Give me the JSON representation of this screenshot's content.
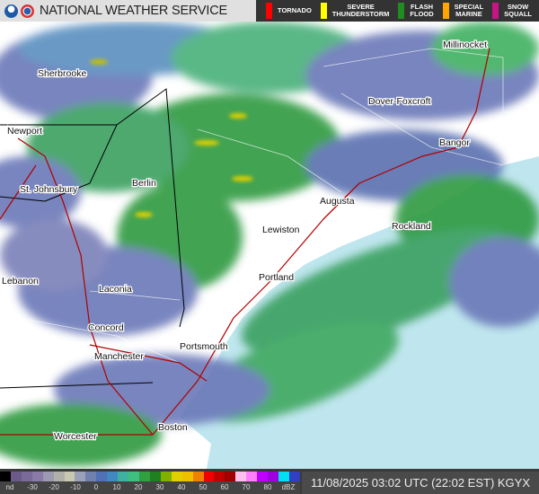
{
  "header": {
    "title": "NATIONAL WEATHER SERVICE",
    "logos": [
      "noaa-logo",
      "nws-logo"
    ]
  },
  "warning_legend": [
    {
      "label": "TORNADO",
      "color": "#ff0000"
    },
    {
      "label": "SEVERE THUNDERSTORM",
      "color": "#ffff00"
    },
    {
      "label": "FLASH FLOOD",
      "color": "#228b22"
    },
    {
      "label": "SPECIAL MARINE",
      "color": "#ffa500"
    },
    {
      "label": "SNOW SQUALL",
      "color": "#c71585"
    }
  ],
  "map": {
    "cities": [
      "Millinocket",
      "Sherbrooke",
      "Dover-Foxcroft",
      "Newport",
      "Bangor",
      "St. Johnsbury",
      "Berlin",
      "Augusta",
      "Lewiston",
      "Rockland",
      "Lebanon",
      "Laconia",
      "Portland",
      "Concord",
      "Portsmouth",
      "Manchester",
      "Worcester",
      "Boston"
    ],
    "colors": {
      "land": "#ffffff",
      "ocean": "#bfe6ee",
      "roads": "#b00000"
    }
  },
  "colorbar": {
    "labels": [
      "nd",
      "-30",
      "-20",
      "-10",
      "0",
      "10",
      "20",
      "30",
      "40",
      "50",
      "60",
      "70",
      "80",
      "dBZ"
    ],
    "colors": [
      "#000000",
      "#6a5a8a",
      "#7a6a9a",
      "#8a7aa8",
      "#9a9ab0",
      "#b0b0a8",
      "#c8c8b0",
      "#9aa0b8",
      "#7080b0",
      "#5070b8",
      "#4088c0",
      "#40b0a0",
      "#40c080",
      "#30a040",
      "#208020",
      "#80b000",
      "#e0d000",
      "#f0c000",
      "#f08000",
      "#f00000",
      "#c00000",
      "#a00000",
      "#ffc0f0",
      "#ff80ff",
      "#c000ff",
      "#a000e0",
      "#00e0f0",
      "#3040c0"
    ],
    "unit": "dBZ"
  },
  "timestamp": "11/08/2025 03:02 UTC (22:02 EST) KGYX"
}
